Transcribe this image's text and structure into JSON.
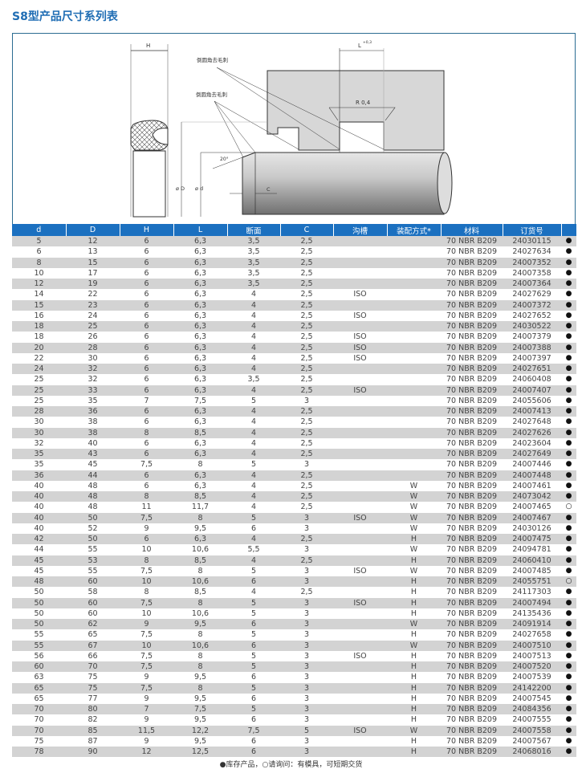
{
  "title": "S8型产品尺寸系列表",
  "diagram": {
    "label_H": "H",
    "label_L": "L",
    "label_L_tol": "+0,3",
    "label_deburr_1": "倒圆角去毛刺",
    "label_deburr_2": "倒圆角去毛刺",
    "label_R": "R 0,4",
    "label_angle": "20°",
    "label_D": "ø D",
    "label_d": "ø d",
    "label_C": "C"
  },
  "table": {
    "headers": [
      "d",
      "D",
      "H",
      "L",
      "断面",
      "C",
      "沟槽",
      "装配方式*",
      "材料",
      "订货号",
      ""
    ],
    "rows": [
      [
        "5",
        "12",
        "6",
        "6,3",
        "3,5",
        "2,5",
        "",
        "",
        "70 NBR B209",
        "24030115",
        "●"
      ],
      [
        "6",
        "13",
        "6",
        "6,3",
        "3,5",
        "2,5",
        "",
        "",
        "70 NBR B209",
        "24027634",
        "●"
      ],
      [
        "8",
        "15",
        "6",
        "6,3",
        "3,5",
        "2,5",
        "",
        "",
        "70 NBR B209",
        "24007352",
        "●"
      ],
      [
        "10",
        "17",
        "6",
        "6,3",
        "3,5",
        "2,5",
        "",
        "",
        "70 NBR B209",
        "24007358",
        "●"
      ],
      [
        "12",
        "19",
        "6",
        "6,3",
        "3,5",
        "2,5",
        "",
        "",
        "70 NBR B209",
        "24007364",
        "●"
      ],
      [
        "14",
        "22",
        "6",
        "6,3",
        "4",
        "2,5",
        "ISO",
        "",
        "70 NBR B209",
        "24027629",
        "●"
      ],
      [
        "15",
        "23",
        "6",
        "6,3",
        "4",
        "2,5",
        "",
        "",
        "70 NBR B209",
        "24007372",
        "●"
      ],
      [
        "16",
        "24",
        "6",
        "6,3",
        "4",
        "2,5",
        "ISO",
        "",
        "70 NBR B209",
        "24027652",
        "●"
      ],
      [
        "18",
        "25",
        "6",
        "6,3",
        "4",
        "2,5",
        "",
        "",
        "70 NBR B209",
        "24030522",
        "●"
      ],
      [
        "18",
        "26",
        "6",
        "6,3",
        "4",
        "2,5",
        "ISO",
        "",
        "70 NBR B209",
        "24007379",
        "●"
      ],
      [
        "20",
        "28",
        "6",
        "6,3",
        "4",
        "2,5",
        "ISO",
        "",
        "70 NBR B209",
        "24007388",
        "●"
      ],
      [
        "22",
        "30",
        "6",
        "6,3",
        "4",
        "2,5",
        "ISO",
        "",
        "70 NBR B209",
        "24007397",
        "●"
      ],
      [
        "24",
        "32",
        "6",
        "6,3",
        "4",
        "2,5",
        "",
        "",
        "70 NBR B209",
        "24027651",
        "●"
      ],
      [
        "25",
        "32",
        "6",
        "6,3",
        "3,5",
        "2,5",
        "",
        "",
        "70 NBR B209",
        "24060408",
        "●"
      ],
      [
        "25",
        "33",
        "6",
        "6,3",
        "4",
        "2,5",
        "ISO",
        "",
        "70 NBR B209",
        "24007407",
        "●"
      ],
      [
        "25",
        "35",
        "7",
        "7,5",
        "5",
        "3",
        "",
        "",
        "70 NBR B209",
        "24055606",
        "●"
      ],
      [
        "28",
        "36",
        "6",
        "6,3",
        "4",
        "2,5",
        "",
        "",
        "70 NBR B209",
        "24007413",
        "●"
      ],
      [
        "30",
        "38",
        "6",
        "6,3",
        "4",
        "2,5",
        "",
        "",
        "70 NBR B209",
        "24027648",
        "●"
      ],
      [
        "30",
        "38",
        "8",
        "8,5",
        "4",
        "2,5",
        "",
        "",
        "70 NBR B209",
        "24027626",
        "●"
      ],
      [
        "32",
        "40",
        "6",
        "6,3",
        "4",
        "2,5",
        "",
        "",
        "70 NBR B209",
        "24023604",
        "●"
      ],
      [
        "35",
        "43",
        "6",
        "6,3",
        "4",
        "2,5",
        "",
        "",
        "70 NBR B209",
        "24027649",
        "●"
      ],
      [
        "35",
        "45",
        "7,5",
        "8",
        "5",
        "3",
        "",
        "",
        "70 NBR B209",
        "24007446",
        "●"
      ],
      [
        "36",
        "44",
        "6",
        "6,3",
        "4",
        "2,5",
        "",
        "",
        "70 NBR B209",
        "24007448",
        "●"
      ],
      [
        "40",
        "48",
        "6",
        "6,3",
        "4",
        "2,5",
        "",
        "W",
        "70 NBR B209",
        "24007461",
        "●"
      ],
      [
        "40",
        "48",
        "8",
        "8,5",
        "4",
        "2,5",
        "",
        "W",
        "70 NBR B209",
        "24073042",
        "●"
      ],
      [
        "40",
        "48",
        "11",
        "11,7",
        "4",
        "2,5",
        "",
        "W",
        "70 NBR B209",
        "24007465",
        "○"
      ],
      [
        "40",
        "50",
        "7,5",
        "8",
        "5",
        "3",
        "ISO",
        "W",
        "70 NBR B209",
        "24007467",
        "●"
      ],
      [
        "40",
        "52",
        "9",
        "9,5",
        "6",
        "3",
        "",
        "W",
        "70 NBR B209",
        "24030126",
        "●"
      ],
      [
        "42",
        "50",
        "6",
        "6,3",
        "4",
        "2,5",
        "",
        "H",
        "70 NBR B209",
        "24007475",
        "●"
      ],
      [
        "44",
        "55",
        "10",
        "10,6",
        "5,5",
        "3",
        "",
        "W",
        "70 NBR B209",
        "24094781",
        "●"
      ],
      [
        "45",
        "53",
        "8",
        "8,5",
        "4",
        "2,5",
        "",
        "H",
        "70 NBR B209",
        "24060410",
        "●"
      ],
      [
        "45",
        "55",
        "7,5",
        "8",
        "5",
        "3",
        "ISO",
        "W",
        "70 NBR B209",
        "24007485",
        "●"
      ],
      [
        "48",
        "60",
        "10",
        "10,6",
        "6",
        "3",
        "",
        "H",
        "70 NBR B209",
        "24055751",
        "○"
      ],
      [
        "50",
        "58",
        "8",
        "8,5",
        "4",
        "2,5",
        "",
        "H",
        "70 NBR B209",
        "24117303",
        "●"
      ],
      [
        "50",
        "60",
        "7,5",
        "8",
        "5",
        "3",
        "ISO",
        "H",
        "70 NBR B209",
        "24007494",
        "●"
      ],
      [
        "50",
        "60",
        "10",
        "10,6",
        "5",
        "3",
        "",
        "H",
        "70 NBR B209",
        "24135436",
        "●"
      ],
      [
        "50",
        "62",
        "9",
        "9,5",
        "6",
        "3",
        "",
        "W",
        "70 NBR B209",
        "24091914",
        "●"
      ],
      [
        "55",
        "65",
        "7,5",
        "8",
        "5",
        "3",
        "",
        "H",
        "70 NBR B209",
        "24027658",
        "●"
      ],
      [
        "55",
        "67",
        "10",
        "10,6",
        "6",
        "3",
        "",
        "W",
        "70 NBR B209",
        "24007510",
        "●"
      ],
      [
        "56",
        "66",
        "7,5",
        "8",
        "5",
        "3",
        "ISO",
        "H",
        "70 NBR B209",
        "24007513",
        "●"
      ],
      [
        "60",
        "70",
        "7,5",
        "8",
        "5",
        "3",
        "",
        "H",
        "70 NBR B209",
        "24007520",
        "●"
      ],
      [
        "63",
        "75",
        "9",
        "9,5",
        "6",
        "3",
        "",
        "H",
        "70 NBR B209",
        "24007539",
        "●"
      ],
      [
        "65",
        "75",
        "7,5",
        "8",
        "5",
        "3",
        "",
        "H",
        "70 NBR B209",
        "24142200",
        "●"
      ],
      [
        "65",
        "77",
        "9",
        "9,5",
        "6",
        "3",
        "",
        "H",
        "70 NBR B209",
        "24007545",
        "●"
      ],
      [
        "70",
        "80",
        "7",
        "7,5",
        "5",
        "3",
        "",
        "H",
        "70 NBR B209",
        "24084356",
        "●"
      ],
      [
        "70",
        "82",
        "9",
        "9,5",
        "6",
        "3",
        "",
        "H",
        "70 NBR B209",
        "24007555",
        "●"
      ],
      [
        "70",
        "85",
        "11,5",
        "12,2",
        "7,5",
        "5",
        "ISO",
        "W",
        "70 NBR B209",
        "24007558",
        "●"
      ],
      [
        "75",
        "87",
        "9",
        "9,5",
        "6",
        "3",
        "",
        "H",
        "70 NBR B209",
        "24007567",
        "●"
      ],
      [
        "78",
        "90",
        "12",
        "12,5",
        "6",
        "3",
        "",
        "H",
        "70 NBR B209",
        "24068016",
        "●"
      ]
    ]
  },
  "footnote": "●库存产品，○请询问：有模具，可短期交货",
  "colors": {
    "title": "#1f6db4",
    "header_bg": "#1b70c0",
    "row_alt": "#d3d3d3",
    "frame": "#2b6c92"
  }
}
